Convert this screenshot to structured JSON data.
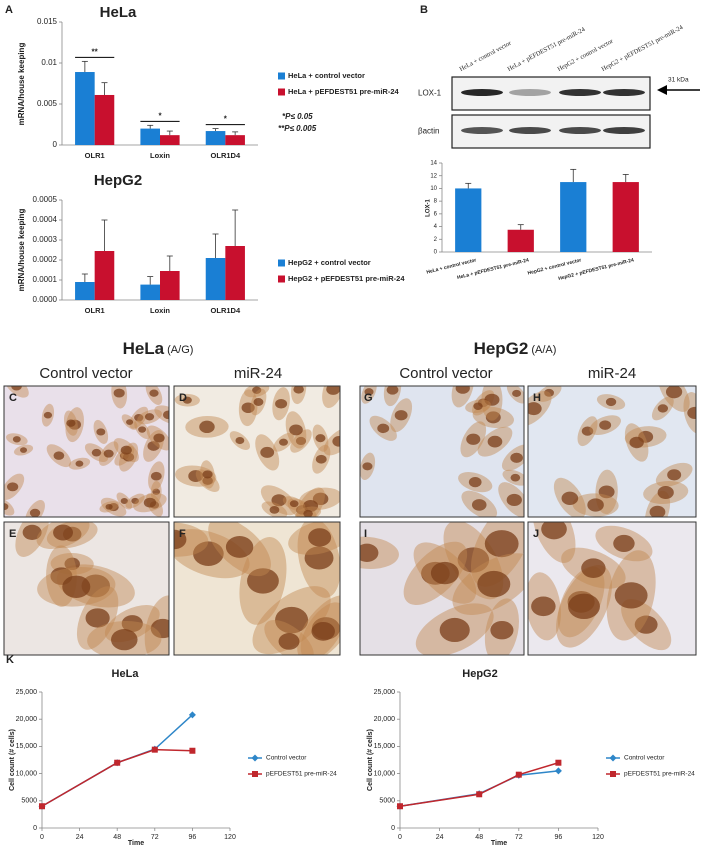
{
  "figure": {
    "panel_labels": [
      "A",
      "B",
      "C",
      "D",
      "E",
      "F",
      "G",
      "H",
      "I",
      "J",
      "K"
    ],
    "blot": {
      "lanes": [
        "HeLa + control vector",
        "HeLa + pEFDEST51 pre-miR-24",
        "HepG2  + control vector",
        "HepG2 + pEFDEST51 pre-miR-24"
      ],
      "rows": [
        "LOX-1",
        "βactin"
      ],
      "marker": "31 kDa"
    },
    "micrographs": {
      "groups": [
        {
          "title": "HeLa",
          "genotype": "(A/G)",
          "columns": [
            "Control vector",
            "miR-24"
          ]
        },
        {
          "title": "HepG2",
          "genotype": "(A/A)",
          "columns": [
            "Control vector",
            "miR-24"
          ]
        }
      ]
    }
  },
  "chart_data": [
    {
      "type": "bar",
      "title": "HeLa",
      "y_label": "mRNA/house keeping",
      "categories": [
        "OLR1",
        "Loxin",
        "OLR1D4"
      ],
      "series": [
        {
          "name": "HeLa + control vector",
          "color": "#1a7fd4",
          "values": [
            0.0089,
            0.002,
            0.0017
          ],
          "errors": [
            0.0013,
            0.0004,
            0.0003
          ]
        },
        {
          "name": "HeLa + pEFDEST51 pre-miR-24",
          "color": "#c8102e",
          "values": [
            0.0061,
            0.0012,
            0.0012
          ],
          "errors": [
            0.0015,
            0.0005,
            0.0004
          ]
        }
      ],
      "ylim": [
        0,
        0.015
      ],
      "yticks": [
        0,
        0.005,
        0.01,
        0.015
      ],
      "significance": [
        "**",
        "*",
        "*"
      ],
      "notes": [
        "*P≤ 0.05",
        "**P≤ 0.005"
      ],
      "legend": "right"
    },
    {
      "type": "bar",
      "title": "HepG2",
      "y_label": "mRNA/house keeping",
      "categories": [
        "OLR1",
        "Loxin",
        "OLR1D4"
      ],
      "series": [
        {
          "name": "HepG2 + control vector",
          "color": "#1a7fd4",
          "values": [
            9e-05,
            7.7e-05,
            0.00021
          ],
          "errors": [
            4e-05,
            4e-05,
            0.00012
          ]
        },
        {
          "name": "HepG2 + pEFDEST51 pre-miR-24",
          "color": "#c8102e",
          "values": [
            0.000245,
            0.000145,
            0.00027
          ],
          "errors": [
            0.000155,
            7.5e-05,
            0.00018
          ]
        }
      ],
      "ylim": [
        0,
        0.0005
      ],
      "yticks": [
        {
          "value": 0,
          "label": "0.0000"
        },
        {
          "value": 0.0001,
          "label": "0.0001"
        },
        {
          "value": 0.0002,
          "label": "0.0002"
        },
        {
          "value": 0.0003,
          "label": "0.0003"
        },
        {
          "value": 0.0004,
          "label": "0.0004"
        },
        {
          "value": 0.0005,
          "label": "0.0005"
        }
      ],
      "legend": "right"
    },
    {
      "type": "bar",
      "y_label": "LOX-1",
      "categories": [
        "HeLa + control vector",
        "HeLa + pEFDEST51 pre-miR-24",
        "HepG2 + control vector",
        "HepG2 + pEFDEST51 pre-miR-24"
      ],
      "values": [
        10,
        3.5,
        11,
        11
      ],
      "errors": [
        0.8,
        0.8,
        2,
        1.2
      ],
      "colors": [
        "#1a7fd4",
        "#c8102e",
        "#1a7fd4",
        "#c8102e"
      ],
      "ylim": [
        0,
        14
      ],
      "yticks": [
        0,
        2,
        4,
        6,
        8,
        10,
        12,
        14
      ]
    },
    {
      "type": "line",
      "title": "HeLa",
      "x_label": "Time",
      "y_label": "Cell count (# cells)",
      "x": [
        0,
        48,
        72,
        96
      ],
      "series": [
        {
          "name": "Control vector",
          "color": "#2e86c8",
          "marker": "diamond",
          "values": [
            4000,
            12000,
            14500,
            20800
          ]
        },
        {
          "name": "pEFDEST51 pre-miR-24",
          "color": "#c0272d",
          "marker": "square",
          "values": [
            4000,
            12000,
            14400,
            14200
          ]
        }
      ],
      "xlim": [
        0,
        120
      ],
      "xticks": [
        0,
        24,
        48,
        72,
        96,
        120
      ],
      "ylim": [
        0,
        25000
      ],
      "yticks": [
        0,
        5000,
        {
          "value": 10000,
          "label": "10,000"
        },
        {
          "value": 15000,
          "label": "15,000"
        },
        {
          "value": 20000,
          "label": "20,000"
        },
        {
          "value": 25000,
          "label": "25,000"
        }
      ],
      "legend": "right"
    },
    {
      "type": "line",
      "title": "HepG2",
      "x_label": "Time",
      "y_label": "Cell count (# cells)",
      "x": [
        0,
        48,
        72,
        96
      ],
      "series": [
        {
          "name": "Control vector",
          "color": "#2e86c8",
          "marker": "diamond",
          "values": [
            4000,
            6300,
            9700,
            10500
          ]
        },
        {
          "name": "pEFDEST51 pre-miR-24",
          "color": "#c0272d",
          "marker": "square",
          "values": [
            4000,
            6200,
            9800,
            12000
          ]
        }
      ],
      "xlim": [
        0,
        120
      ],
      "xticks": [
        0,
        24,
        48,
        72,
        96,
        120
      ],
      "ylim": [
        0,
        25000
      ],
      "yticks": [
        0,
        5000,
        {
          "value": 10000,
          "label": "10,000"
        },
        {
          "value": 15000,
          "label": "15,000"
        },
        {
          "value": 20000,
          "label": "20,000"
        },
        {
          "value": 25000,
          "label": "25,000"
        }
      ],
      "legend": "right"
    }
  ]
}
